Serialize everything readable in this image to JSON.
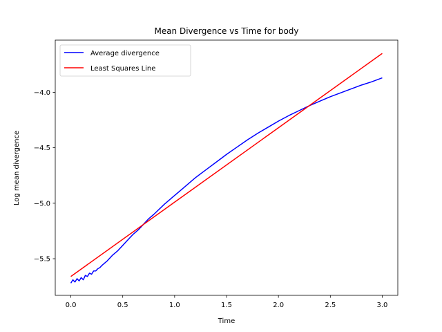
{
  "chart_data": {
    "type": "line",
    "title": "Mean Divergence vs Time for body",
    "xlabel": "Time",
    "ylabel": "Log mean divergence",
    "xlim": [
      -0.15,
      3.15
    ],
    "ylim": [
      -5.83,
      -3.53
    ],
    "xticks": [
      0.0,
      0.5,
      1.0,
      1.5,
      2.0,
      2.5,
      3.0
    ],
    "xtick_labels": [
      "0.0",
      "0.5",
      "1.0",
      "1.5",
      "2.0",
      "2.5",
      "3.0"
    ],
    "yticks": [
      -5.5,
      -5.0,
      -4.5,
      -4.0
    ],
    "ytick_labels": [
      "−5.5",
      "−5.0",
      "−4.5",
      "−4.0"
    ],
    "grid": false,
    "legend_position": "upper-left",
    "series": [
      {
        "name": "Average divergence",
        "color": "#0000ff",
        "x": [
          0.0,
          0.02,
          0.04,
          0.06,
          0.08,
          0.1,
          0.12,
          0.14,
          0.16,
          0.18,
          0.2,
          0.22,
          0.24,
          0.26,
          0.28,
          0.3,
          0.35,
          0.4,
          0.45,
          0.5,
          0.55,
          0.6,
          0.65,
          0.7,
          0.75,
          0.8,
          0.9,
          1.0,
          1.1,
          1.2,
          1.3,
          1.4,
          1.5,
          1.6,
          1.7,
          1.8,
          1.9,
          2.0,
          2.1,
          2.2,
          2.3,
          2.4,
          2.5,
          2.6,
          2.7,
          2.8,
          2.9,
          3.0
        ],
        "y": [
          -5.72,
          -5.69,
          -5.71,
          -5.68,
          -5.7,
          -5.67,
          -5.69,
          -5.65,
          -5.66,
          -5.63,
          -5.64,
          -5.61,
          -5.61,
          -5.59,
          -5.58,
          -5.56,
          -5.52,
          -5.47,
          -5.43,
          -5.38,
          -5.33,
          -5.28,
          -5.24,
          -5.19,
          -5.14,
          -5.1,
          -5.01,
          -4.93,
          -4.85,
          -4.77,
          -4.7,
          -4.63,
          -4.56,
          -4.495,
          -4.43,
          -4.37,
          -4.315,
          -4.26,
          -4.21,
          -4.165,
          -4.12,
          -4.08,
          -4.04,
          -4.005,
          -3.97,
          -3.935,
          -3.905,
          -3.87
        ]
      },
      {
        "name": "Least Squares Line",
        "color": "#ff0000",
        "x": [
          0.0,
          3.0
        ],
        "y": [
          -5.66,
          -3.65
        ]
      }
    ]
  }
}
